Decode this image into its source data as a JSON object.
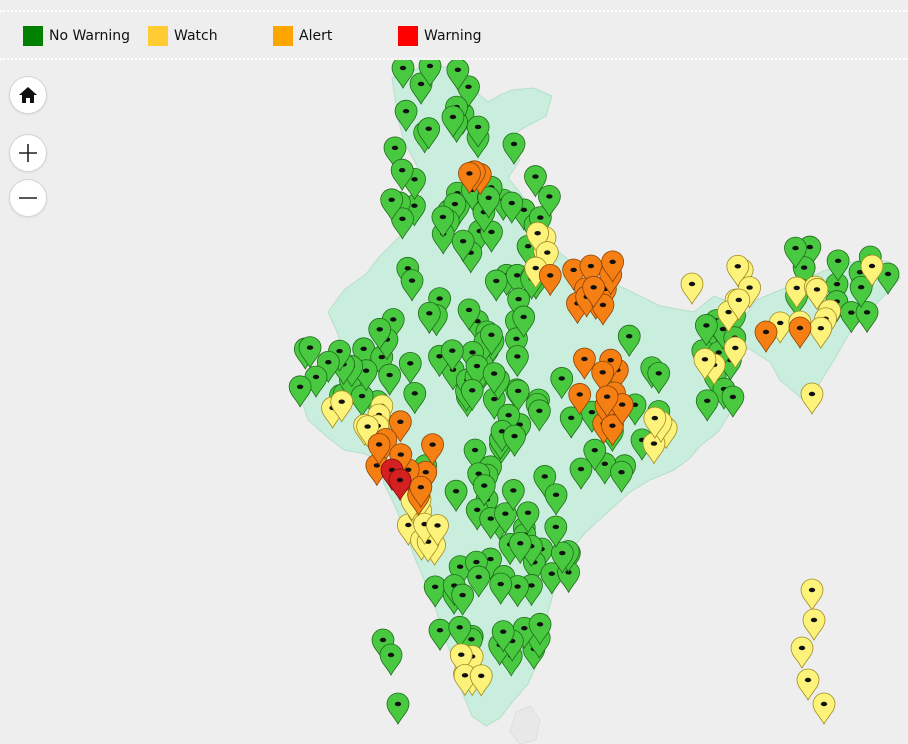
{
  "legend": {
    "items": [
      {
        "label": "No Warning",
        "color": "#008000"
      },
      {
        "label": "Watch",
        "color": "#ffcc33"
      },
      {
        "label": "Alert",
        "color": "#ffa500"
      },
      {
        "label": "Warning",
        "color": "#ff0000"
      }
    ]
  },
  "controls": {
    "home_icon": "home-icon",
    "zoom_in_icon": "plus-icon",
    "zoom_out_icon": "minus-icon"
  },
  "marker_colors": {
    "no_warning": "#48c940",
    "watch": "#fdf27a",
    "alert": "#f57f12",
    "warning": "#d42020"
  }
}
